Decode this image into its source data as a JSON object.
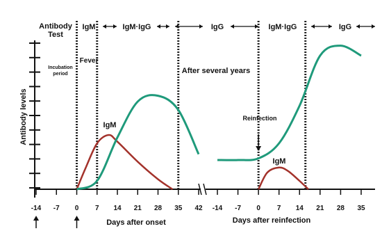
{
  "chart_data": {
    "type": "line",
    "ylabel": "Antibody levels",
    "header": {
      "test_label_line1": "Antibody",
      "test_label_line2": "Test",
      "phases": [
        "IgM",
        "IgM·IgG",
        "IgG",
        "IgM·IgG",
        "IgG"
      ]
    },
    "annotations": {
      "incubation_line1": "Incubation",
      "incubation_line2": "period",
      "fever": "Fever",
      "after_years": "After several years",
      "reinfection": "Reinfection"
    },
    "axis": {
      "ticks_onset": [
        "-14",
        "-7",
        "0",
        "7",
        "14",
        "21",
        "28",
        "35",
        "42"
      ],
      "ticks_reinfection": [
        "-14",
        "-7",
        "0",
        "7",
        "14",
        "21",
        "28",
        "35"
      ],
      "xlabel_onset": "Days after onset",
      "xlabel_reinfection": "Days after reinfection"
    },
    "colors": {
      "igm": "#a3322b",
      "igg": "#1f9a7b",
      "igm_text": "#d93a2b",
      "igg_text": "#1e8f6a",
      "phase_dark": "#222222"
    },
    "series": [
      {
        "name": "IgM",
        "segment": "onset",
        "x": [
          0,
          3,
          7,
          11,
          14,
          21,
          28,
          33
        ],
        "y": [
          0.0,
          0.25,
          0.55,
          0.65,
          0.57,
          0.33,
          0.12,
          0.0
        ]
      },
      {
        "name": "IgG",
        "segment": "onset-to-reinfection",
        "x": [
          "0",
          "7",
          "14",
          "21",
          "28",
          "35",
          "42",
          "-14",
          "-7",
          "0",
          "7",
          "14",
          "21",
          "28",
          "35"
        ],
        "y": [
          0.0,
          0.1,
          0.62,
          1.05,
          1.12,
          0.95,
          0.42,
          0.35,
          0.35,
          0.37,
          0.55,
          1.0,
          1.6,
          1.72,
          1.6
        ]
      },
      {
        "name": "IgM",
        "segment": "reinfection",
        "x": [
          0,
          3,
          7,
          10,
          14,
          17
        ],
        "y": [
          0.0,
          0.2,
          0.26,
          0.22,
          0.1,
          0.0
        ]
      }
    ]
  }
}
